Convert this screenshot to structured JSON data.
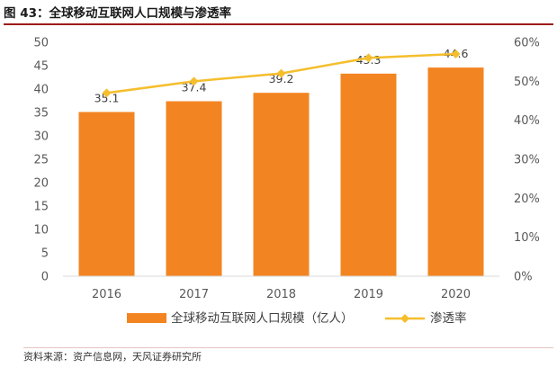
{
  "title": "图 43：全球移动互联网人口规模与渗透率",
  "source": "资料来源：资产信息网，天风证券研究所",
  "colors": {
    "bar": "#f28522",
    "line": "#f5be2d",
    "axis": "#d9d9d9",
    "title_rule": "#9e1b1b"
  },
  "chart_data": {
    "type": "bar",
    "title": "全球移动互联网人口规模与渗透率",
    "categories": [
      "2016",
      "2017",
      "2018",
      "2019",
      "2020"
    ],
    "series": [
      {
        "name": "全球移动互联网人口规模（亿人）",
        "type": "bar",
        "axis": "left",
        "values": [
          35.1,
          37.4,
          39.2,
          43.3,
          44.6
        ],
        "labels": [
          "35.1",
          "37.4",
          "39.2",
          "43.3",
          "44.6"
        ]
      },
      {
        "name": "渗透率",
        "type": "line",
        "axis": "right",
        "values": [
          0.47,
          0.5,
          0.52,
          0.56,
          0.57
        ]
      }
    ],
    "y_left": {
      "min": 0,
      "max": 50,
      "ticks": [
        "0",
        "5",
        "10",
        "15",
        "20",
        "25",
        "30",
        "35",
        "40",
        "45",
        "50"
      ]
    },
    "y_right": {
      "min": 0,
      "max": 0.6,
      "ticks": [
        "0%",
        "10%",
        "20%",
        "30%",
        "40%",
        "50%",
        "60%"
      ]
    },
    "legend_position": "bottom",
    "grid": false
  }
}
